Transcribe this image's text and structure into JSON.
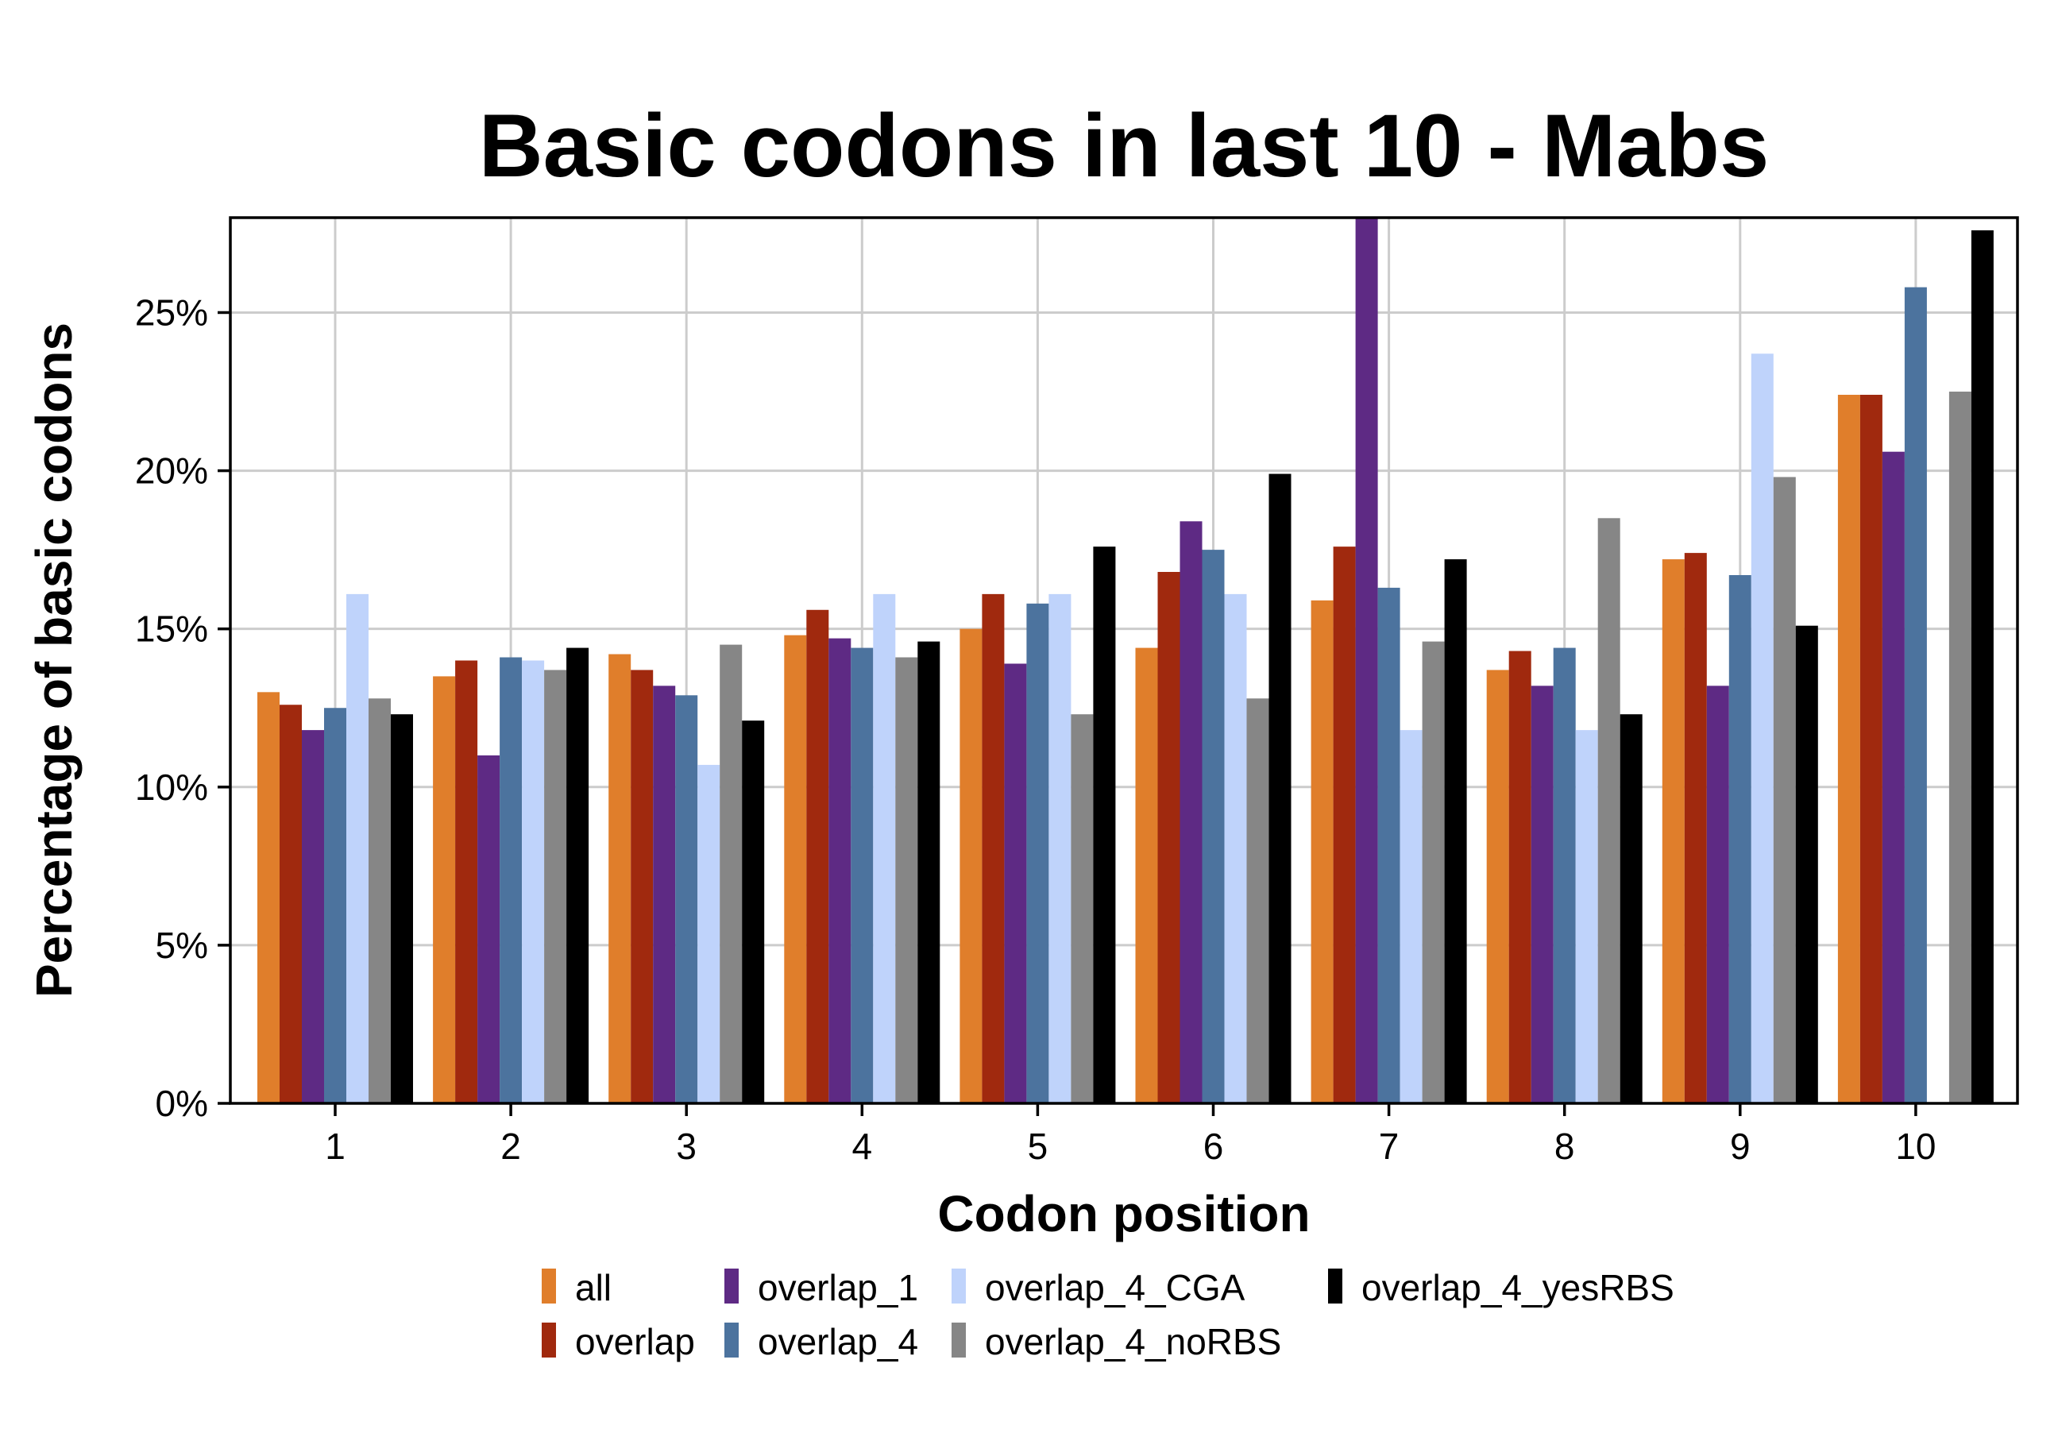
{
  "chart_data": {
    "type": "bar",
    "title": "Basic codons in last 10 - Mabs",
    "xlabel": "Codon position",
    "ylabel": "Percentage of basic codons",
    "ylim": [
      0,
      0.28
    ],
    "yticks": [
      0,
      0.05,
      0.1,
      0.15,
      0.2,
      0.25
    ],
    "ytick_labels": [
      "0%",
      "5%",
      "10%",
      "15%",
      "20%",
      "25%"
    ],
    "categories": [
      "1",
      "2",
      "3",
      "4",
      "5",
      "6",
      "7",
      "8",
      "9",
      "10"
    ],
    "grid": true,
    "legend_position": "bottom",
    "series": [
      {
        "name": "all",
        "color": "#E07E2B",
        "values": [
          0.13,
          0.135,
          0.142,
          0.148,
          0.15,
          0.144,
          0.159,
          0.137,
          0.172,
          0.224
        ]
      },
      {
        "name": "overlap",
        "color": "#A0290E",
        "values": [
          0.126,
          0.14,
          0.137,
          0.156,
          0.161,
          0.168,
          0.176,
          0.143,
          0.174,
          0.224
        ]
      },
      {
        "name": "overlap_1",
        "color": "#5E2A84",
        "values": [
          0.118,
          0.11,
          0.132,
          0.147,
          0.139,
          0.184,
          0.28,
          0.132,
          0.132,
          0.206
        ]
      },
      {
        "name": "overlap_4",
        "color": "#4C739E",
        "values": [
          0.125,
          0.141,
          0.129,
          0.144,
          0.158,
          0.175,
          0.163,
          0.144,
          0.167,
          0.258
        ]
      },
      {
        "name": "overlap_4_CGA",
        "color": "#BFD3FB",
        "values": [
          0.161,
          0.14,
          0.107,
          0.161,
          0.161,
          0.161,
          0.118,
          0.118,
          0.237,
          0.0
        ]
      },
      {
        "name": "overlap_4_noRBS",
        "color": "#868686",
        "values": [
          0.128,
          0.137,
          0.145,
          0.141,
          0.123,
          0.128,
          0.146,
          0.185,
          0.198,
          0.225
        ]
      },
      {
        "name": "overlap_4_yesRBS",
        "color": "#000000",
        "values": [
          0.123,
          0.144,
          0.121,
          0.146,
          0.176,
          0.199,
          0.172,
          0.123,
          0.151,
          0.276
        ]
      }
    ]
  }
}
